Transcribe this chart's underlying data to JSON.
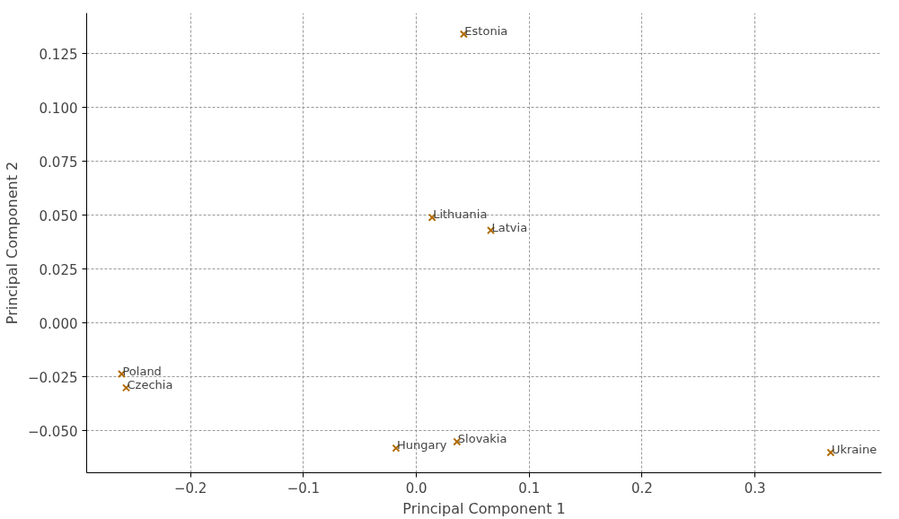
{
  "chart_data": {
    "type": "scatter",
    "xlabel": "Principal Component 1",
    "ylabel": "Principal Component 2",
    "x": [
      0.042,
      0.014,
      0.066,
      -0.261,
      -0.257,
      -0.018,
      0.036,
      0.367
    ],
    "values": [
      0.134,
      0.049,
      0.043,
      -0.0236,
      -0.03,
      -0.058,
      -0.055,
      -0.06
    ],
    "color": "#b06a00",
    "marker": "cross",
    "grid": true,
    "xlim": [
      -0.292,
      0.412
    ],
    "ylim": [
      -0.0694,
      0.1438
    ],
    "xticks": [
      {
        "value": -0.2,
        "label": "−0.2"
      },
      {
        "value": -0.1,
        "label": "−0.1"
      },
      {
        "value": 0.0,
        "label": "0.0"
      },
      {
        "value": 0.1,
        "label": "0.1"
      },
      {
        "value": 0.2,
        "label": "0.2"
      },
      {
        "value": 0.3,
        "label": "0.3"
      }
    ],
    "yticks": [
      {
        "value": -0.05,
        "label": "−0.050"
      },
      {
        "value": -0.025,
        "label": "−0.025"
      },
      {
        "value": 0.0,
        "label": "0.000"
      },
      {
        "value": 0.025,
        "label": "0.025"
      },
      {
        "value": 0.05,
        "label": "0.050"
      },
      {
        "value": 0.075,
        "label": "0.075"
      },
      {
        "value": 0.1,
        "label": "0.100"
      },
      {
        "value": 0.125,
        "label": "0.125"
      }
    ],
    "annotations": [
      {
        "text": "Estonia",
        "x": 0.042,
        "y": 0.134
      },
      {
        "text": "Lithuania",
        "x": 0.014,
        "y": 0.049
      },
      {
        "text": "Latvia",
        "x": 0.066,
        "y": 0.043
      },
      {
        "text": "Poland",
        "x": -0.261,
        "y": -0.0236
      },
      {
        "text": "Czechia",
        "x": -0.257,
        "y": -0.03
      },
      {
        "text": "Hungary",
        "x": -0.018,
        "y": -0.058
      },
      {
        "text": "Slovakia",
        "x": 0.036,
        "y": -0.055
      },
      {
        "text": "Ukraine",
        "x": 0.367,
        "y": -0.06
      }
    ]
  }
}
